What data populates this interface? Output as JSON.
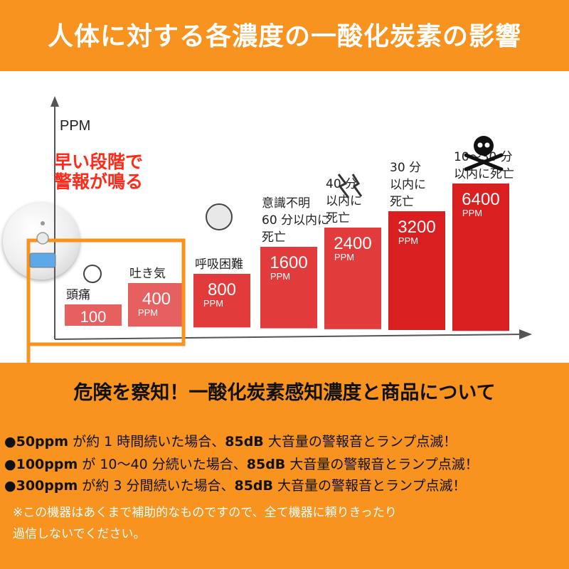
{
  "header": {
    "title": "人体に対する各濃度の一酸化炭素の影響"
  },
  "chart_data": {
    "type": "bar",
    "ylabel": "PPM",
    "callout": [
      "早い段階で",
      "警報が鳴る"
    ],
    "categories": [
      "100",
      "400",
      "800",
      "1600",
      "2400",
      "3200",
      "6400"
    ],
    "values": [
      100,
      400,
      800,
      1600,
      2400,
      3200,
      6400
    ],
    "unit": "PPM",
    "effects": [
      [
        "頭痛"
      ],
      [
        "吐き気"
      ],
      [
        "呼吸困難"
      ],
      [
        "意識不明",
        "60 分以内に",
        "死亡"
      ],
      [
        "40 分",
        "以内に",
        "死亡"
      ],
      [
        "30 分",
        "以内に",
        "死亡"
      ],
      [
        "10〜30 分",
        "以内に死亡"
      ]
    ],
    "colors": {
      "light": "#e66060",
      "mid": "#e23b3b",
      "dark": "#d91f1f"
    }
  },
  "section": {
    "title": "危険を察知！一酸化炭素感知濃度と商品について",
    "bullets": [
      {
        "mark": "●",
        "ppm": "50ppm",
        "mid": " が約 1 時間続いた場合、",
        "db": "85dB",
        "end": " 大音量の警報音とランプ点滅！"
      },
      {
        "mark": "●",
        "ppm": "100ppm",
        "mid": " が 10〜40 分続いた場合、",
        "db": "85dB",
        "end": " 大音量の警報音とランプ点滅！"
      },
      {
        "mark": "●",
        "ppm": "300ppm",
        "mid": " が約 3 分間続いた場合、",
        "db": "85dB",
        "end": " 大音量の警報音とランプ点滅！"
      }
    ],
    "note": [
      "※この機器はあくまで補助的なものですので、全て機器に頼りきったり",
      "過信しないでください。"
    ]
  }
}
